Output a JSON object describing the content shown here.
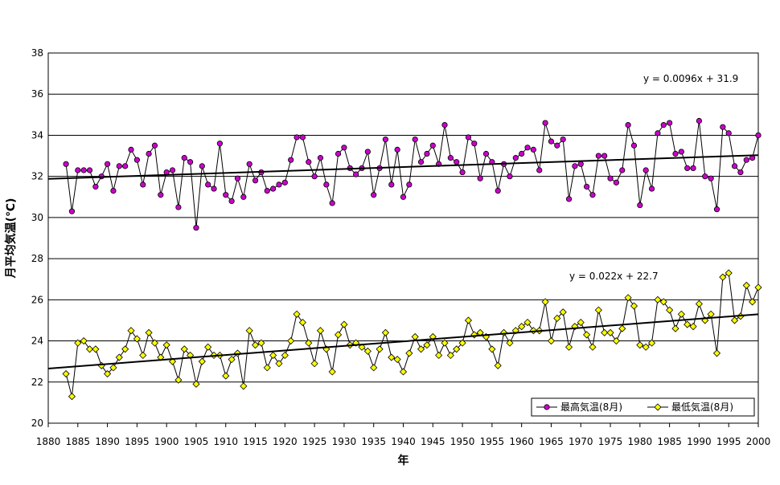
{
  "chart_data": {
    "type": "line",
    "title": "",
    "xlabel": "年",
    "ylabel": "月平均気温(℃)",
    "xlim": [
      1880,
      2000
    ],
    "ylim": [
      20,
      38
    ],
    "x_ticks": [
      1880,
      1885,
      1890,
      1895,
      1900,
      1905,
      1910,
      1915,
      1920,
      1925,
      1930,
      1935,
      1940,
      1945,
      1950,
      1955,
      1960,
      1965,
      1970,
      1975,
      1980,
      1985,
      1990,
      1995,
      2000
    ],
    "y_ticks": [
      20,
      22,
      24,
      26,
      28,
      30,
      32,
      34,
      36,
      38
    ],
    "grid": true,
    "legend_position": "bottom-right",
    "x_start": 1883,
    "series": [
      {
        "name": "最高気温(8月)",
        "color": "#cc00cc",
        "marker": "circle",
        "values": [
          32.6,
          30.3,
          32.3,
          32.3,
          32.3,
          31.5,
          32.0,
          32.6,
          31.3,
          32.5,
          32.5,
          33.3,
          32.8,
          31.6,
          33.1,
          33.5,
          31.1,
          32.2,
          32.3,
          30.5,
          32.9,
          32.7,
          29.5,
          32.5,
          31.6,
          31.4,
          33.6,
          31.1,
          30.8,
          31.9,
          31.0,
          32.6,
          31.8,
          32.2,
          31.3,
          31.4,
          31.6,
          31.7,
          32.8,
          33.9,
          33.9,
          32.7,
          32.0,
          32.9,
          31.6,
          30.7,
          33.1,
          33.4,
          32.4,
          32.1,
          32.4,
          33.2,
          31.1,
          32.4,
          33.8,
          31.6,
          33.3,
          31.0,
          31.6,
          33.8,
          32.7,
          33.1,
          33.5,
          32.6,
          34.5,
          32.9,
          32.7,
          32.2,
          33.9,
          33.6,
          31.9,
          33.1,
          32.7,
          31.3,
          32.6,
          32.0,
          32.9,
          33.1,
          33.4,
          33.3,
          32.3,
          34.6,
          33.7,
          33.5,
          33.8,
          30.9,
          32.5,
          32.6,
          31.5,
          31.1,
          33.0,
          33.0,
          31.9,
          31.7,
          32.3,
          34.5,
          33.5,
          30.6,
          32.3,
          31.4,
          34.1,
          34.5,
          34.6,
          33.1,
          33.2,
          32.4,
          32.4,
          34.7,
          32.0,
          31.9,
          30.4,
          34.4,
          34.1,
          32.5,
          32.2,
          32.8,
          32.9,
          34.0
        ]
      },
      {
        "name": "最低気温(8月)",
        "color": "#ffff00",
        "marker": "diamond",
        "values": [
          22.4,
          21.3,
          23.9,
          24.0,
          23.6,
          23.6,
          22.8,
          22.4,
          22.7,
          23.2,
          23.6,
          24.5,
          24.1,
          23.3,
          24.4,
          23.9,
          23.2,
          23.8,
          23.0,
          22.1,
          23.6,
          23.3,
          21.9,
          23.0,
          23.7,
          23.3,
          23.3,
          22.3,
          23.1,
          23.4,
          21.8,
          24.5,
          23.8,
          23.9,
          22.7,
          23.3,
          22.9,
          23.3,
          24.0,
          25.3,
          24.9,
          23.9,
          22.9,
          24.5,
          23.6,
          22.5,
          24.3,
          24.8,
          23.8,
          23.9,
          23.7,
          23.5,
          22.7,
          23.6,
          24.4,
          23.2,
          23.1,
          22.5,
          23.4,
          24.2,
          23.6,
          23.8,
          24.2,
          23.3,
          23.9,
          23.3,
          23.6,
          23.9,
          25.0,
          24.3,
          24.4,
          24.2,
          23.6,
          22.8,
          24.4,
          23.9,
          24.5,
          24.7,
          24.9,
          24.5,
          24.5,
          25.9,
          24.0,
          25.1,
          25.4,
          23.7,
          24.7,
          24.9,
          24.3,
          23.7,
          25.5,
          24.4,
          24.4,
          24.0,
          24.6,
          26.1,
          25.7,
          23.8,
          23.7,
          23.9,
          26.0,
          25.9,
          25.5,
          24.6,
          25.3,
          24.8,
          24.7,
          25.8,
          25.0,
          25.3,
          23.4,
          27.1,
          27.3,
          25.0,
          25.2,
          26.7,
          25.9,
          26.6
        ]
      }
    ],
    "trendlines": [
      {
        "series": "最高気温(8月)",
        "slope": 0.0096,
        "intercept": 31.9,
        "equation": "y = 0.0096x + 31.9"
      },
      {
        "series": "最低気温(8月)",
        "slope": 0.022,
        "intercept": 22.7,
        "equation": "y = 0.022x + 22.7"
      }
    ]
  }
}
